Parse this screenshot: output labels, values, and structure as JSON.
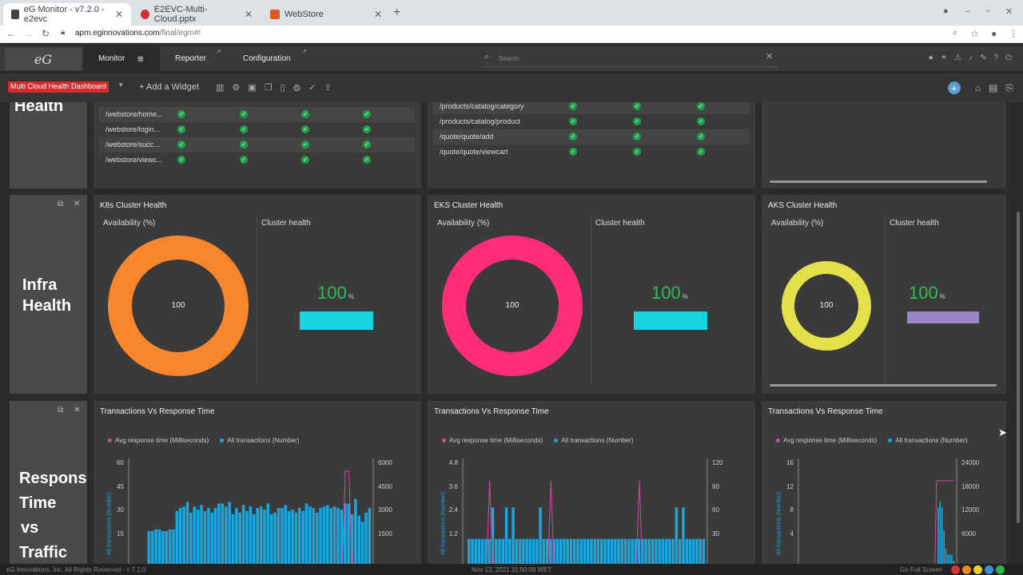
{
  "browser": {
    "tabs": [
      {
        "title": "eG Monitor - v7.2.0 - e2evc",
        "color": "#444"
      },
      {
        "title": "E2EVC-Multi-Cloud.pptx",
        "color": "#c33"
      },
      {
        "title": "WebStore",
        "color": "#e25822"
      }
    ],
    "url_host": "apm.eginnovations.com",
    "url_path": "/final/egm#!"
  },
  "app": {
    "logo": "eG",
    "menu": {
      "monitor": "Monitor",
      "reporter": "Reporter",
      "configuration": "Configuration"
    },
    "search_placeholder": "Search"
  },
  "toolbar": {
    "dashboard_name": "Multi Cloud Health Dashboard",
    "add_widget": "+ Add a Widget"
  },
  "rows": {
    "app": {
      "label": "Health"
    },
    "infra": {
      "label_line1": "Infra",
      "label_line2": "Health"
    },
    "response": {
      "label_line1": "Respons",
      "label_line2": "Time",
      "label_line3": "vs",
      "label_line4": "Traffic"
    }
  },
  "table_left": [
    "/webstore/home...",
    "/webstore/login...",
    "/webstore/succ...",
    "/webstore/viewc..."
  ],
  "table_mid": [
    "/products/catalog/category",
    "/products/catalog/product",
    "/quote/quote/add",
    "/quote/quote/viewcart"
  ],
  "clusters": [
    {
      "title": "K8s Cluster Health",
      "avail_label": "Availability (%)",
      "health_label": "Cluster health",
      "availability": "100",
      "health": "100",
      "unit": "%",
      "donut_color": "#f7862d",
      "bar_color": "#17d3e0"
    },
    {
      "title": "EKS Cluster Health",
      "avail_label": "Availability (%)",
      "health_label": "Cluster health",
      "availability": "100",
      "health": "100",
      "unit": "%",
      "donut_color": "#ff2d7a",
      "bar_color": "#17d3e0"
    },
    {
      "title": "AKS Cluster Health",
      "avail_label": "Availability (%)",
      "health_label": "Cluster health",
      "availability": "100",
      "health": "100",
      "unit": "%",
      "donut_color": "#e3e04a",
      "bar_color": "#9b86c8"
    }
  ],
  "transactions": {
    "title": "Transactions Vs Response Time",
    "legend_response": "Avg response time (Milliseconds)",
    "legend_txn": "All transactions (Number)",
    "y_left_label": "All transactions (Number)",
    "y_right_label": "Avg response time (Milliseconds)",
    "response_color": "#d04ba5",
    "txn_color": "#1aa7dd"
  },
  "chart_data": [
    {
      "type": "bar",
      "title": "Transactions Vs Response Time",
      "left_ticks": [
        "60",
        "45",
        "30",
        "15"
      ],
      "right_ticks": [
        "6000",
        "4500",
        "3000",
        "1500"
      ],
      "ylim": [
        0,
        60
      ],
      "series": [
        {
          "name": "All transactions (Number)",
          "values": [
            3,
            2,
            2,
            2,
            31,
            31,
            32,
            32,
            31,
            31,
            32,
            32,
            44,
            46,
            47,
            50,
            43,
            47,
            45,
            48,
            44,
            46,
            43,
            46,
            49,
            49,
            47,
            50,
            42,
            46,
            43,
            48,
            44,
            47,
            42,
            46,
            47,
            45,
            49,
            42,
            43,
            46,
            46,
            48,
            44,
            45,
            43,
            46,
            44,
            49,
            47,
            46,
            43,
            46,
            47,
            48,
            46,
            47,
            46,
            45,
            49,
            49,
            42,
            52,
            41,
            37,
            43,
            46
          ]
        }
      ]
    },
    {
      "type": "bar",
      "title": "Transactions Vs Response Time",
      "left_ticks": [
        "4.8",
        "3.6",
        "2.4",
        "1.2"
      ],
      "right_ticks": [
        "120",
        "90",
        "60",
        "30"
      ],
      "ylim": [
        0,
        4.8
      ],
      "series": [
        {
          "name": "All transactions (Number)",
          "values": [
            2,
            2,
            2,
            2,
            2,
            2,
            2,
            3.6,
            2,
            2,
            2,
            3.6,
            2,
            3.6,
            2,
            2,
            2,
            2,
            2,
            2,
            2,
            3.6,
            2,
            2,
            2,
            2,
            2,
            2,
            2,
            2,
            2,
            2,
            2,
            2,
            2,
            2,
            2,
            2,
            2,
            2,
            2,
            2,
            2,
            2,
            2,
            2,
            2,
            2,
            2,
            2,
            2,
            2,
            2,
            2,
            2,
            2,
            2,
            2,
            2,
            2,
            2,
            3.6,
            2,
            3.6,
            2,
            2,
            2,
            2,
            2,
            2
          ]
        }
      ]
    },
    {
      "type": "bar",
      "title": "Transactions Vs Response Time",
      "left_ticks": [
        "16",
        "12",
        "8",
        "4"
      ],
      "right_ticks": [
        "24000",
        "18000",
        "12000",
        "6000"
      ],
      "ylim": [
        0,
        16
      ],
      "series": [
        {
          "name": "All transactions (Number)",
          "values": [
            1,
            1,
            1,
            1,
            1,
            1,
            1,
            1,
            1,
            1,
            1,
            1,
            1,
            1,
            1,
            1,
            1,
            1,
            1,
            1,
            1,
            1,
            1,
            1,
            1,
            1,
            1,
            1,
            1,
            1,
            1,
            1,
            1,
            1,
            1,
            1,
            1,
            1,
            1,
            1,
            1,
            1,
            1,
            1,
            1,
            1,
            1,
            1,
            1,
            1,
            1,
            1,
            1,
            1,
            1,
            1,
            1,
            1,
            1,
            1,
            1,
            1,
            1,
            1,
            1,
            1,
            1,
            1,
            1,
            12,
            13,
            12,
            8,
            5,
            4,
            4,
            4,
            3
          ]
        }
      ]
    }
  ],
  "footer": {
    "copyright": "eG Innovations, Inc. All Rights Reserved - v 7.2.0",
    "timestamp": "Nov 13, 2021 11:50:09 WET",
    "fullscreen": "Go Full Screen"
  }
}
